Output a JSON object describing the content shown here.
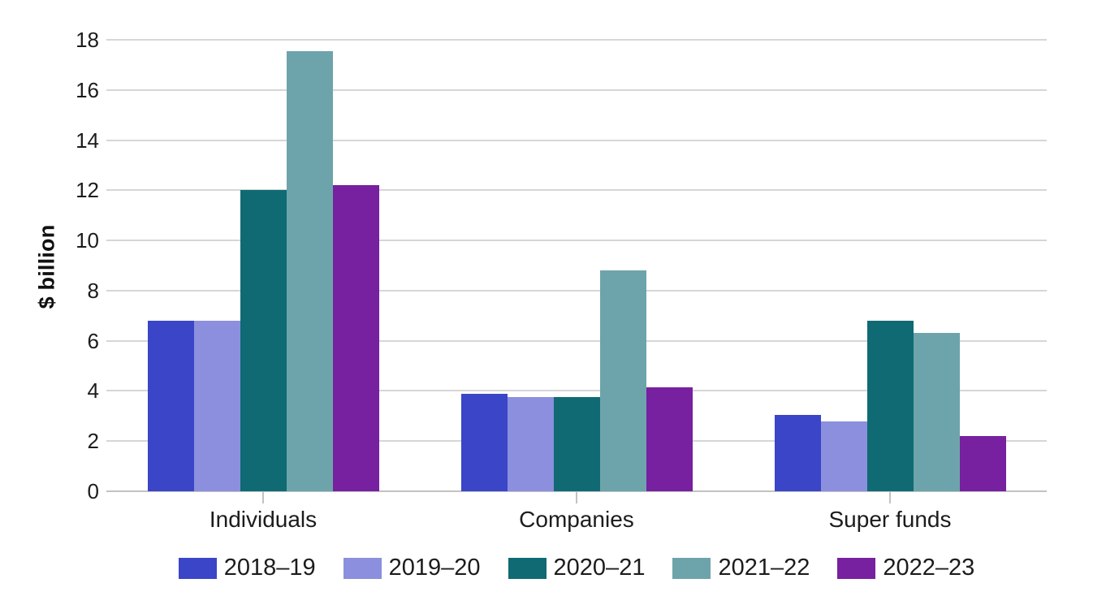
{
  "chart_data": {
    "type": "bar",
    "title": "",
    "ylabel": "$ billion",
    "xlabel": "",
    "categories": [
      "Individuals",
      "Companies",
      "Super funds"
    ],
    "series": [
      {
        "name": "2018–19",
        "color": "#3a45c8",
        "values": [
          6.8,
          3.9,
          3.05
        ]
      },
      {
        "name": "2019–20",
        "color": "#8b8fde",
        "values": [
          6.8,
          3.75,
          2.8
        ]
      },
      {
        "name": "2020–21",
        "color": "#0f6a73",
        "values": [
          12.0,
          3.75,
          6.8
        ]
      },
      {
        "name": "2021–22",
        "color": "#6da4ab",
        "values": [
          17.55,
          8.8,
          6.3
        ]
      },
      {
        "name": "2022–23",
        "color": "#7720a0",
        "values": [
          12.2,
          4.15,
          2.2
        ]
      }
    ],
    "ylim": [
      0,
      18
    ],
    "yticks": [
      0,
      2,
      4,
      6,
      8,
      10,
      12,
      14,
      16,
      18
    ],
    "grid": true,
    "legend_position": "bottom"
  }
}
